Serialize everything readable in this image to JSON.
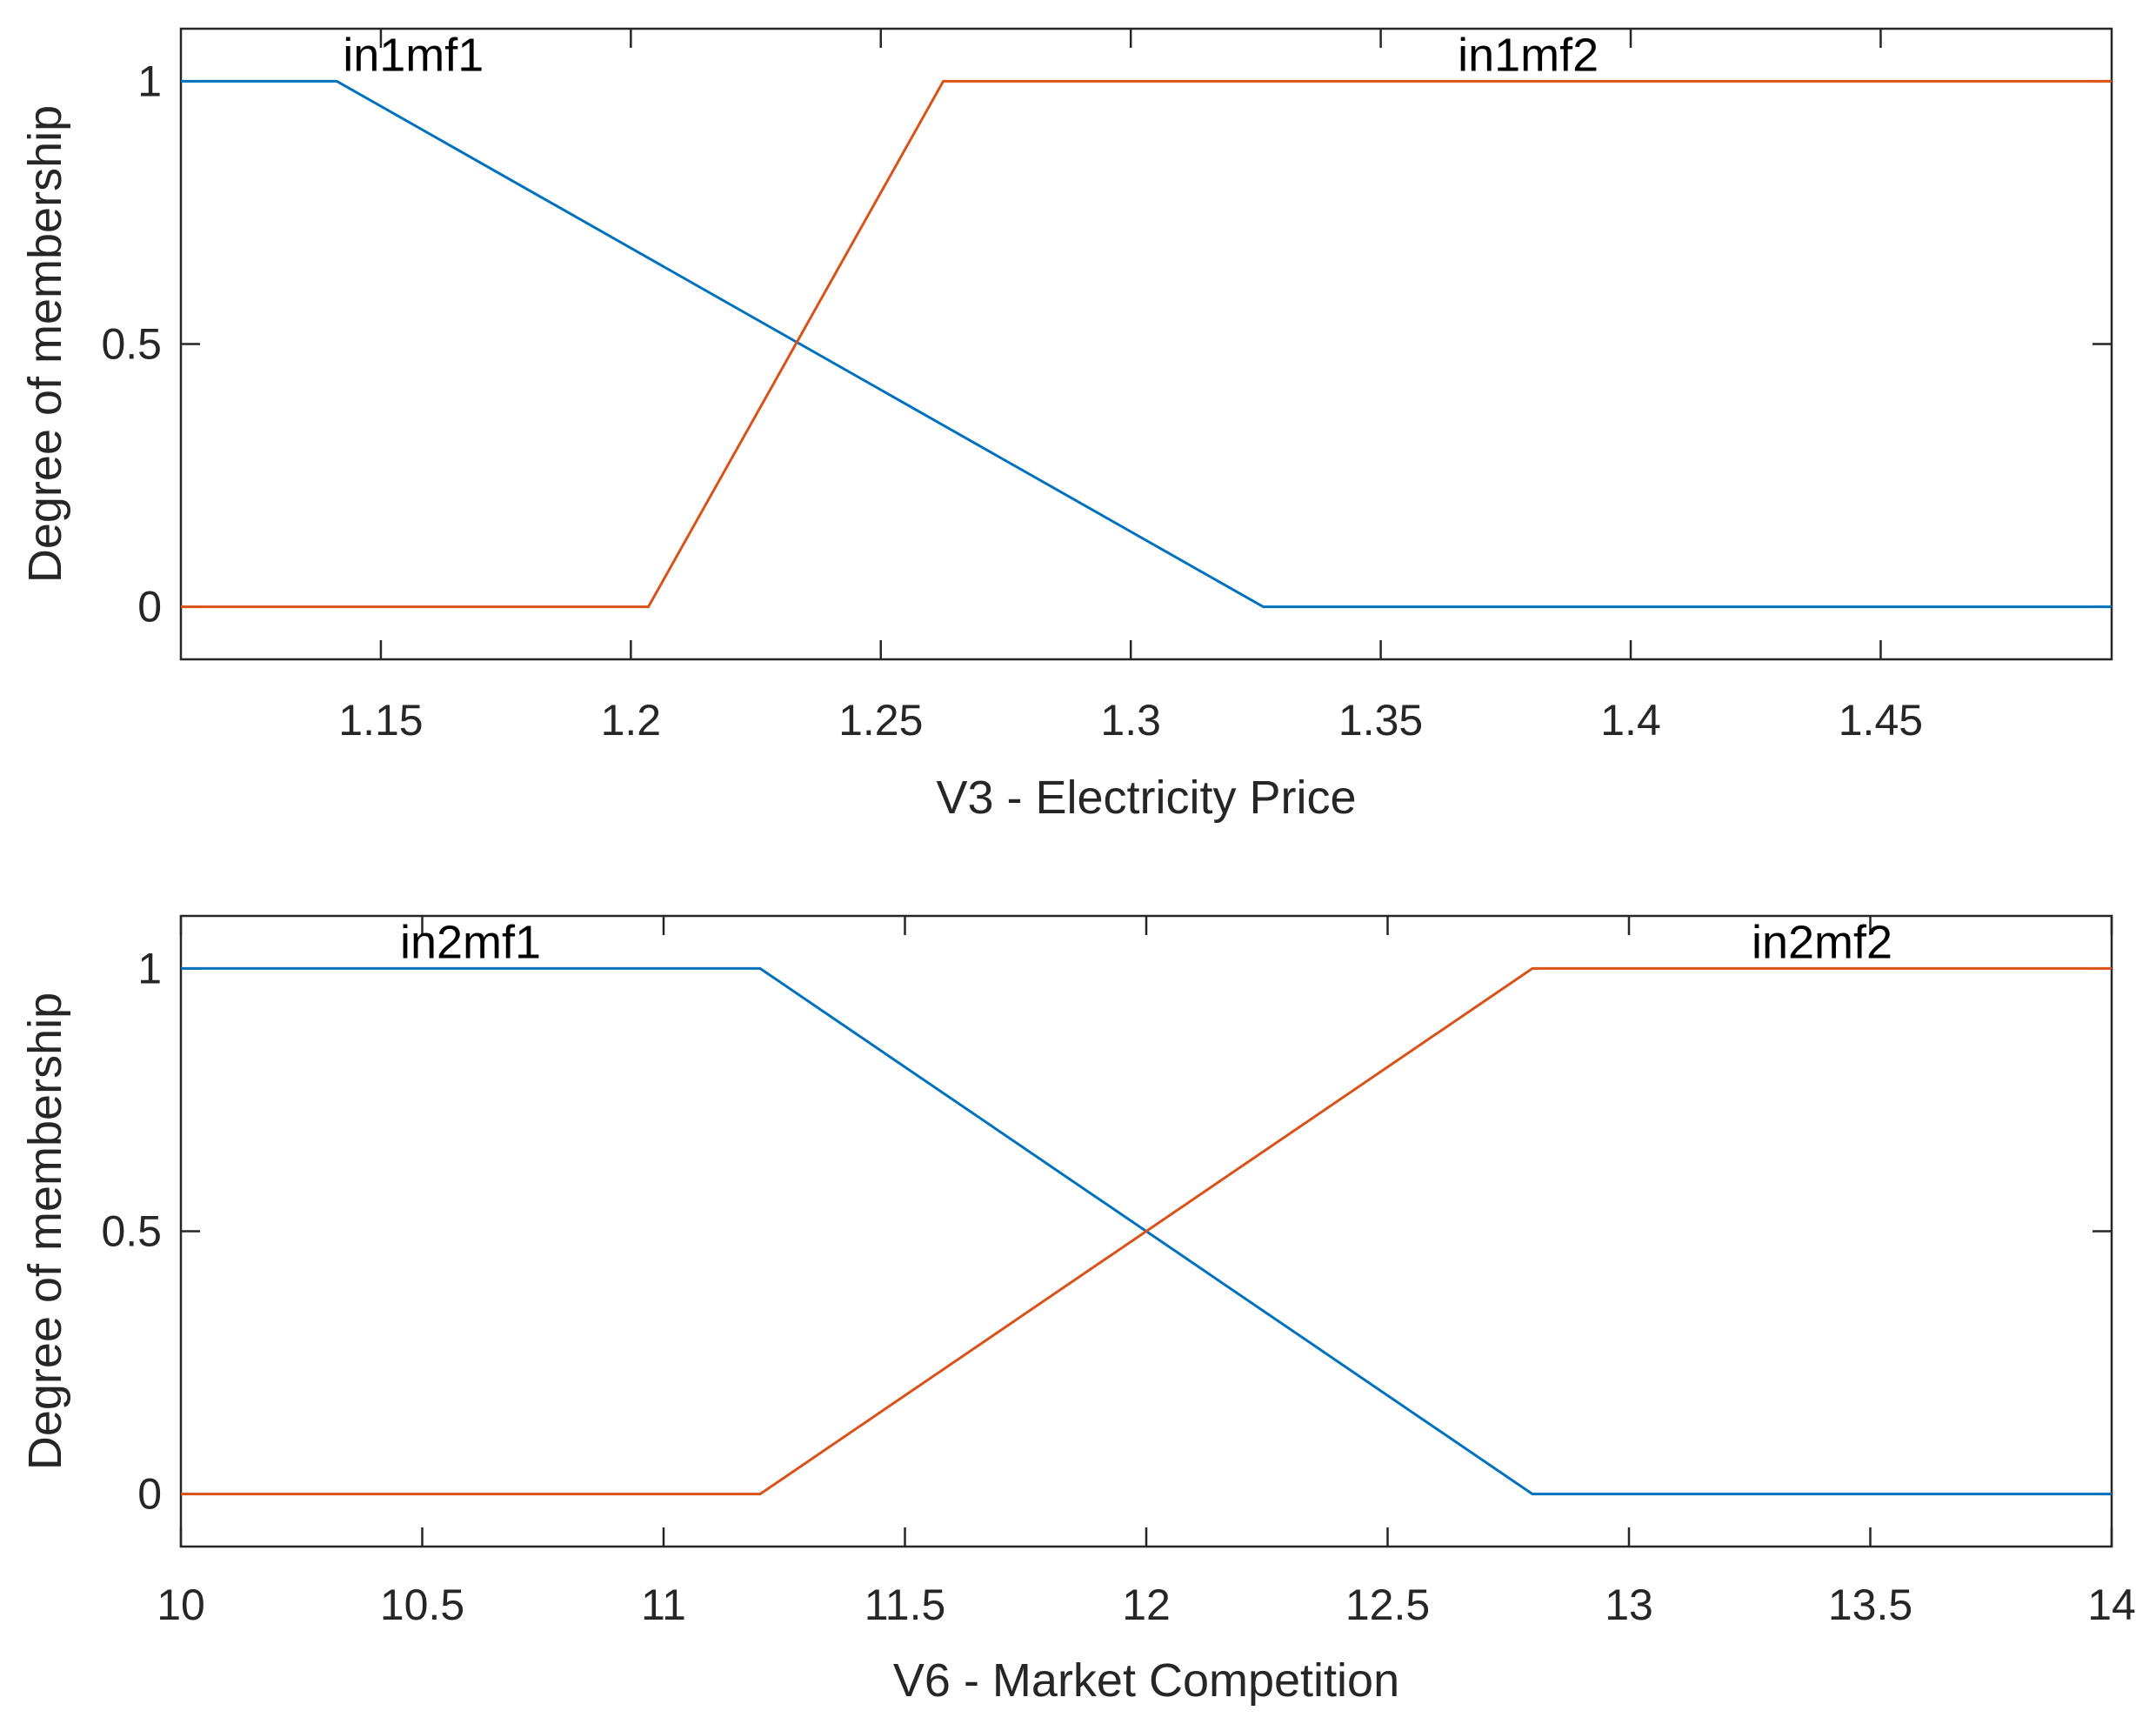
{
  "chart_data": [
    {
      "type": "line",
      "xlabel": "V3 - Electricity Price",
      "ylabel": "Degree of membership",
      "xlim": [
        1.11,
        1.4962
      ],
      "ylim": [
        -0.1,
        1.1
      ],
      "xticks": [
        1.15,
        1.2,
        1.25,
        1.3,
        1.35,
        1.4,
        1.45
      ],
      "xtick_labels": [
        "1.15",
        "1.2",
        "1.25",
        "1.3",
        "1.35",
        "1.4",
        "1.45"
      ],
      "yticks": [
        0,
        0.5,
        1
      ],
      "ytick_labels": [
        "0",
        "0.5",
        "1"
      ],
      "grid": false,
      "series": [
        {
          "name": "in1mf1",
          "color": "#0072BD",
          "x": [
            1.11,
            1.1412,
            1.3265,
            1.4962
          ],
          "y": [
            1,
            1,
            0,
            0
          ],
          "label_x": 1.1565,
          "label_y": 1.02
        },
        {
          "name": "in1mf2",
          "color": "#D95319",
          "x": [
            1.11,
            1.2035,
            1.2625,
            1.4962
          ],
          "y": [
            0,
            0,
            1,
            1
          ],
          "label_x": 1.3795,
          "label_y": 1.02
        }
      ]
    },
    {
      "type": "line",
      "xlabel": "V6 - Market Competition",
      "ylabel": "Degree of membership",
      "xlim": [
        10,
        14
      ],
      "ylim": [
        -0.1,
        1.1
      ],
      "xticks": [
        10,
        10.5,
        11,
        11.5,
        12,
        12.5,
        13,
        13.5,
        14
      ],
      "xtick_labels": [
        "10",
        "10.5",
        "11",
        "11.5",
        "12",
        "12.5",
        "13",
        "13.5",
        "14"
      ],
      "yticks": [
        0,
        0.5,
        1
      ],
      "ytick_labels": [
        "0",
        "0.5",
        "1"
      ],
      "grid": false,
      "series": [
        {
          "name": "in2mf1",
          "color": "#0072BD",
          "x": [
            10,
            11.2,
            12.8,
            14
          ],
          "y": [
            1,
            1,
            0,
            0
          ],
          "label_x": 10.6,
          "label_y": 1.02
        },
        {
          "name": "in2mf2",
          "color": "#D95319",
          "x": [
            10,
            11.2,
            12.8,
            14
          ],
          "y": [
            0,
            0,
            1,
            1
          ],
          "label_x": 13.4,
          "label_y": 1.02
        }
      ]
    }
  ]
}
